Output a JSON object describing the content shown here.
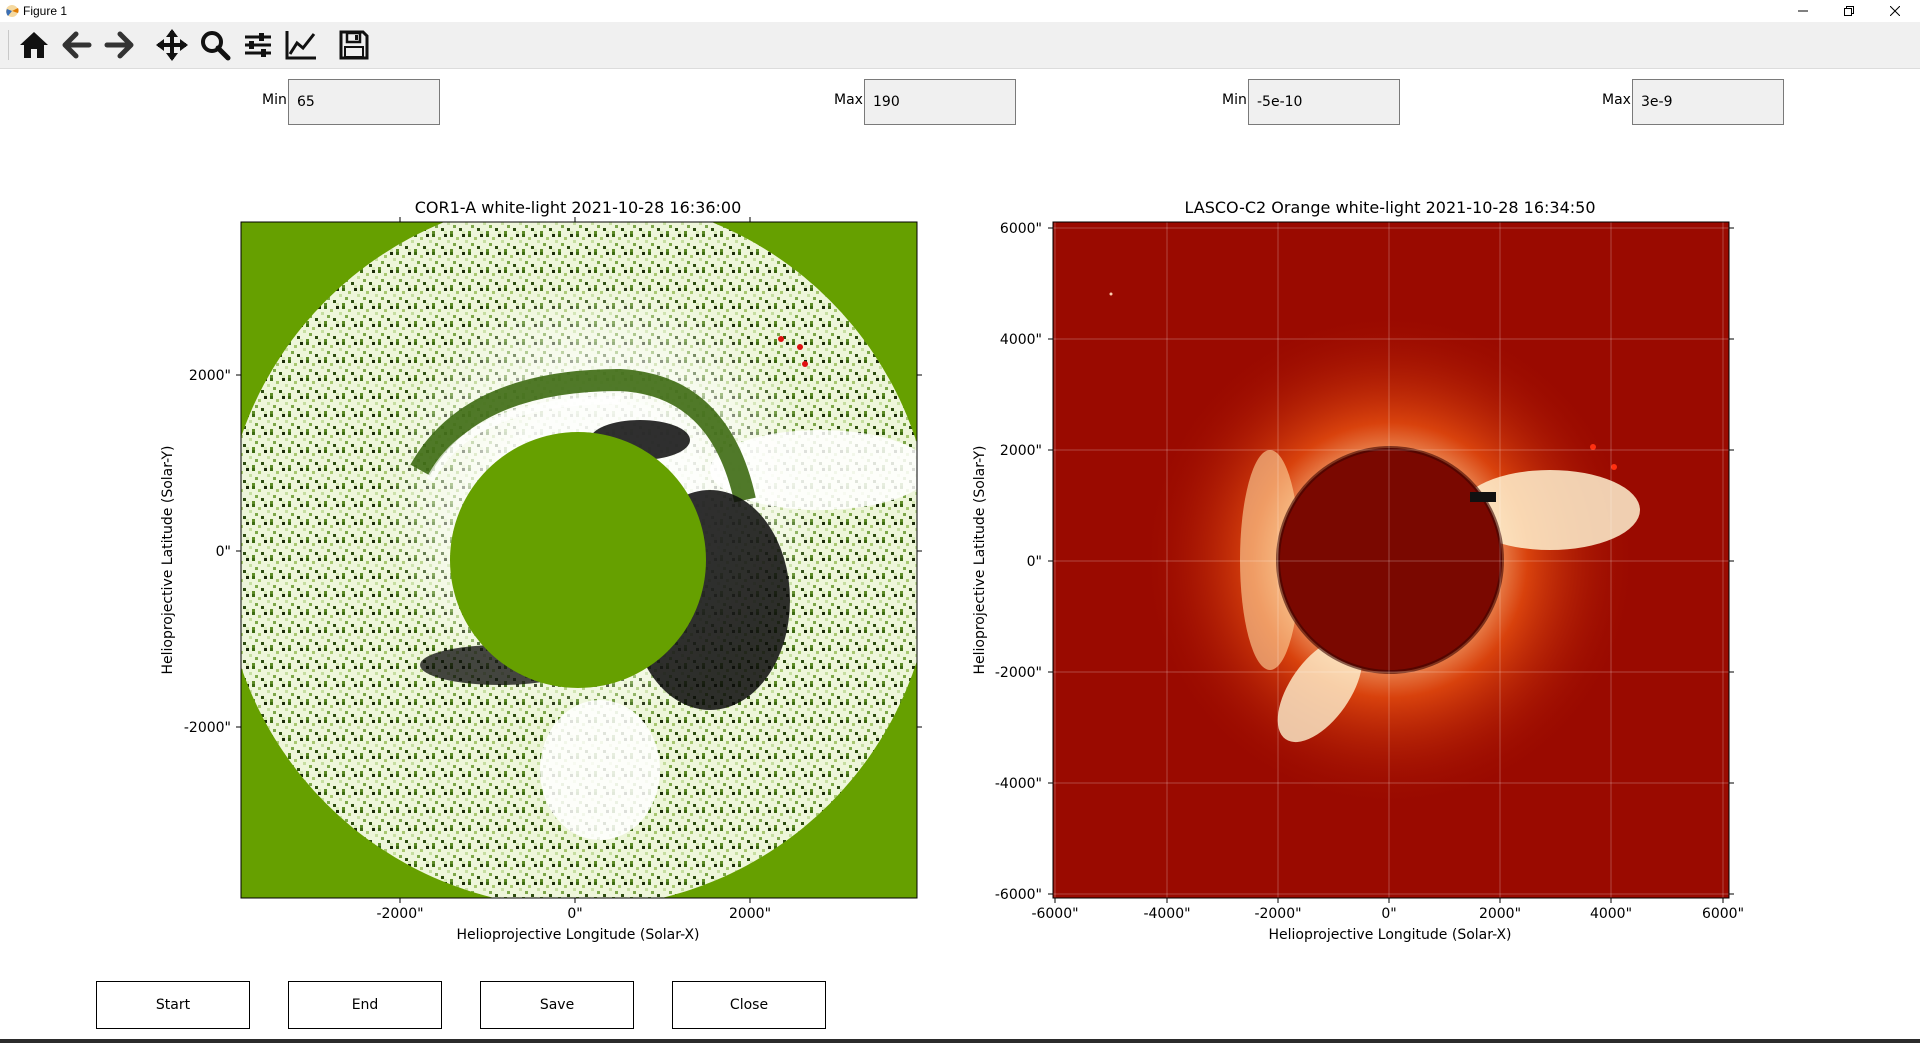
{
  "window": {
    "title": "Figure 1"
  },
  "toolbar": {
    "buttons": [
      {
        "name": "home-icon"
      },
      {
        "name": "back-arrow-icon"
      },
      {
        "name": "forward-arrow-icon"
      },
      {
        "name": "pan-icon"
      },
      {
        "name": "zoom-icon"
      },
      {
        "name": "subplots-icon"
      },
      {
        "name": "edit-curves-icon"
      },
      {
        "name": "save-icon"
      }
    ]
  },
  "controls": {
    "left_min": {
      "label": "Min",
      "value": "65"
    },
    "left_max": {
      "label": "Max",
      "value": "190"
    },
    "right_min": {
      "label": "Min",
      "value": "-5e-10"
    },
    "right_max": {
      "label": "Max",
      "value": "3e-9"
    }
  },
  "left_panel": {
    "title": "COR1-A white-light 2021-10-28 16:36:00",
    "xlabel": "Helioprojective Longitude (Solar-X)",
    "ylabel": "Helioprojective Latitude (Solar-Y)",
    "xticks": [
      "-2000\"",
      "0\"",
      "2000\""
    ],
    "yticks": [
      "2000\"",
      "0\"",
      "-2000\""
    ],
    "colors": {
      "background": "#66a000",
      "pale": "#e4f0c4",
      "dark": "#0a0a0a"
    }
  },
  "right_panel": {
    "title": "LASCO-C2 Orange white-light 2021-10-28 16:34:50",
    "xlabel": "Helioprojective Longitude (Solar-X)",
    "ylabel": "Helioprojective Latitude (Solar-Y)",
    "xticks": [
      "-6000\"",
      "-4000\"",
      "-2000\"",
      "0\"",
      "2000\"",
      "4000\"",
      "6000\""
    ],
    "yticks": [
      "6000\"",
      "4000\"",
      "2000\"",
      "0\"",
      "-2000\"",
      "-4000\"",
      "-6000\""
    ],
    "colors": {
      "background": "#9a0a00",
      "disk": "#7a0800",
      "bright": "#ffe8c0"
    }
  },
  "buttons": {
    "start": "Start",
    "end": "End",
    "save": "Save",
    "close": "Close"
  }
}
